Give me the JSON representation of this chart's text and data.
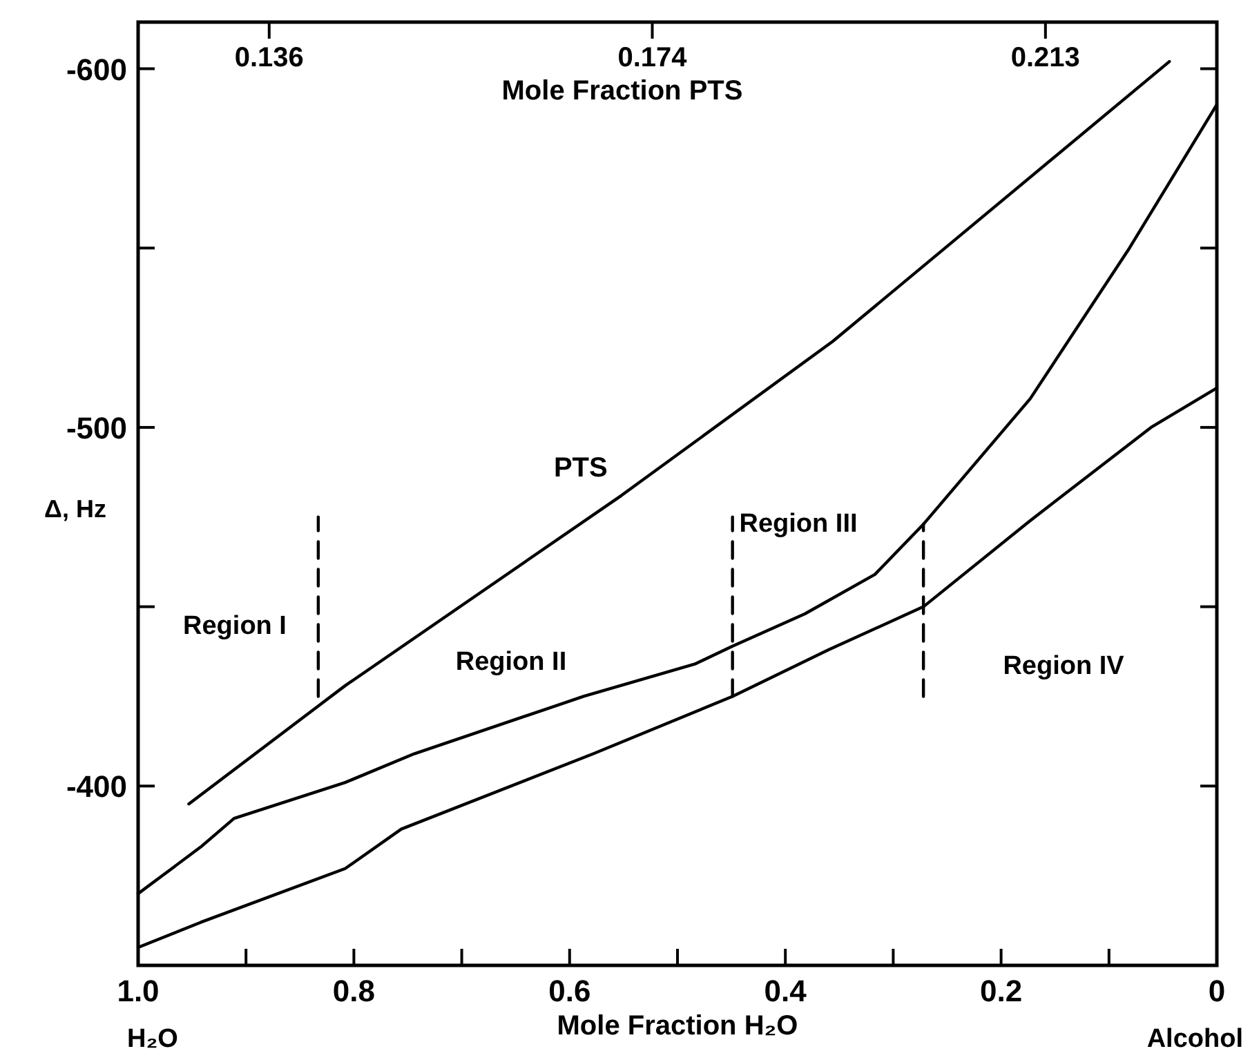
{
  "chart_data": {
    "type": "line",
    "xlabel": "Mole Fraction H₂O",
    "x2label": "Mole Fraction PTS",
    "ylabel": "Δ, Hz",
    "xlim": [
      1,
      0
    ],
    "xticks": [
      {
        "value": 1,
        "label": "1.0"
      },
      {
        "value": 0.9,
        "label": null
      },
      0.8,
      {
        "value": 0.7,
        "label": null
      },
      0.6,
      {
        "value": 0.5,
        "label": null
      },
      0.4,
      {
        "value": 0.3,
        "label": null
      },
      0.2,
      {
        "value": 0.1,
        "label": null
      },
      0
    ],
    "x2lim": [
      0.123,
      0.23
    ],
    "x2ticks": [
      0.136,
      0.174,
      0.213
    ],
    "ylim": [
      -350,
      -613
    ],
    "yticks": [
      -600,
      {
        "value": -550,
        "label": null
      },
      -500,
      {
        "value": -450,
        "label": null
      },
      -400
    ],
    "grid": false,
    "legend": false,
    "marker": "none",
    "series": [
      {
        "name": "PTS",
        "color": "#000000",
        "x": [
          0.953,
          0.808,
          0.552,
          0.356,
          0.044
        ],
        "values": [
          -395,
          -428,
          -481,
          -524,
          -602
        ]
      },
      {
        "color": "#000000",
        "x": [
          1,
          0.942,
          0.911,
          0.808,
          0.744,
          0.587,
          0.484,
          0.449,
          0.382,
          0.317,
          0.272,
          0.173,
          0.081,
          0
        ],
        "values": [
          -370,
          -383,
          -391,
          -401,
          -409,
          -425,
          -434,
          -439,
          -448,
          -459,
          -473,
          -508,
          -550,
          -590
        ]
      },
      {
        "color": "#000000",
        "x": [
          1,
          0.942,
          0.808,
          0.756,
          0.578,
          0.449,
          0.36,
          0.272,
          0.173,
          0.061,
          0
        ],
        "values": [
          -355,
          -362,
          -377,
          -388,
          -409,
          -425,
          -438,
          -450,
          -474,
          -500,
          -511
        ]
      },
      {
        "type": "line",
        "line_style": "dashed",
        "color": "#000000",
        "x": [
          0.833,
          0.833
        ],
        "values": [
          -425,
          -475
        ]
      },
      {
        "type": "line",
        "line_style": "dashed",
        "color": "#000000",
        "x": [
          0.449,
          0.449
        ],
        "values": [
          -425,
          -475
        ]
      },
      {
        "type": "line",
        "line_style": "dashed",
        "color": "#000000",
        "x": [
          0.272,
          0.272
        ],
        "values": [
          -425,
          -473
        ]
      }
    ],
    "annotations": [
      "Region I",
      "Region II",
      "Region III",
      "Region IV",
      "H₂O",
      "Alcohol"
    ]
  }
}
